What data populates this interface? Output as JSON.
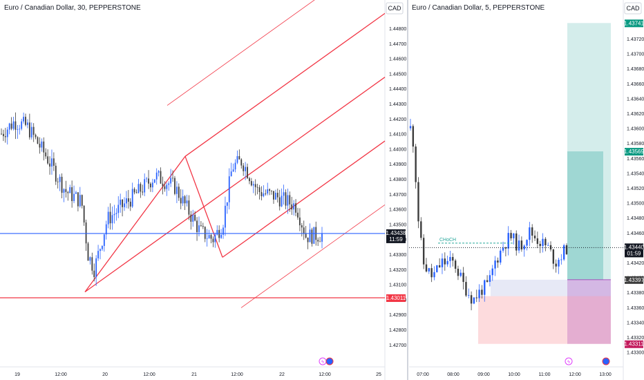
{
  "chart_data": [
    {
      "type": "candlestick",
      "title": "Euro / Canadian Dollar, 30, PEPPERSTONE",
      "currency": "CAD",
      "y_ticks": [
        "1.44800",
        "1.44700",
        "1.44600",
        "1.44500",
        "1.44400",
        "1.44300",
        "1.44200",
        "1.44100",
        "1.44000",
        "1.43900",
        "1.43800",
        "1.43700",
        "1.43600",
        "1.43500",
        "1.43400",
        "1.43300",
        "1.43200",
        "1.43100",
        "1.43000",
        "1.42900",
        "1.42800",
        "1.42700"
      ],
      "x_ticks": [
        "19",
        "12:00",
        "20",
        "12:00",
        "21",
        "12:00",
        "22",
        "12:00",
        "25"
      ],
      "price_label": "1.43438",
      "countdown": "11:59",
      "support_label": "1.43011",
      "current_price": 1.43438,
      "support_level": 1.43011,
      "pitchfork": {
        "p1": 1.4305,
        "p2": 1.4395,
        "p3": 1.4328
      },
      "colors": {
        "up": "#2962ff",
        "down": "#3c3c3c",
        "support": "#f23645",
        "price_line": "#2962ff",
        "pitchfork": "#f23645"
      }
    },
    {
      "type": "candlestick",
      "title": "Euro / Canadian Dollar, 5, PEPPERSTONE",
      "currency": "CAD",
      "y_ticks": [
        "1.43720",
        "1.43700",
        "1.43680",
        "1.43660",
        "1.43640",
        "1.43620",
        "1.43600",
        "1.43580",
        "1.43560",
        "1.43540",
        "1.43520",
        "1.43500",
        "1.43480",
        "1.43460",
        "1.43440",
        "1.43420",
        "1.43400",
        "1.43380",
        "1.43360",
        "1.43340",
        "1.43320",
        "1.43300"
      ],
      "x_ticks": [
        "07:00",
        "08:00",
        "09:00",
        "10:00",
        "11:00",
        "12:00",
        "13:00"
      ],
      "annotation": "CHoCH",
      "annotation_level": 1.43446,
      "labels": {
        "target": "1.43741",
        "entry_top": "1.43569",
        "price": "1.43440",
        "countdown": "01:59",
        "stop_entry": "1.43397",
        "stop": "1.43311"
      },
      "levels": {
        "target": 1.43741,
        "entry_top": 1.43569,
        "price": 1.4344,
        "stop_entry": 1.43397,
        "zone_bottom": 1.43375,
        "stop": 1.43311
      },
      "colors": {
        "up": "#2962ff",
        "down": "#3c3c3c",
        "target_zone": "#b2dfdb",
        "stop_zone": "#f8bbd0",
        "annotation": "#26a69a"
      }
    }
  ]
}
